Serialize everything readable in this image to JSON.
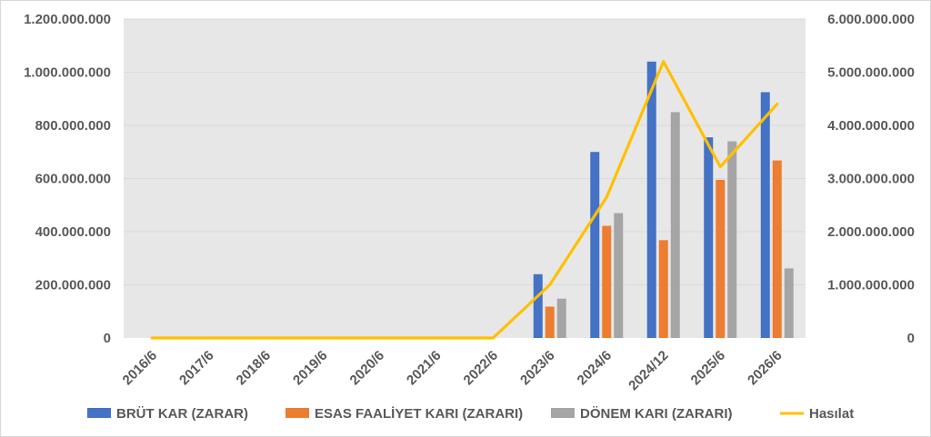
{
  "chart_data": {
    "type": "bar",
    "categories": [
      "2016/6",
      "2017/6",
      "2018/6",
      "2019/6",
      "2020/6",
      "2021/6",
      "2022/6",
      "2023/6",
      "2024/6",
      "2024/12",
      "2025/6",
      "2026/6"
    ],
    "series": [
      {
        "name": "BRÜT KAR (ZARAR)",
        "type": "bar",
        "axis": "left",
        "color": "#4472c4",
        "values": [
          null,
          null,
          null,
          null,
          null,
          null,
          null,
          240000000,
          700000000,
          1040000000,
          755000000,
          925000000
        ]
      },
      {
        "name": "ESAS FAALİYET KARI (ZARARI)",
        "type": "bar",
        "axis": "left",
        "color": "#ed7d31",
        "values": [
          null,
          null,
          null,
          null,
          null,
          null,
          null,
          118000000,
          422000000,
          368000000,
          595000000,
          668000000
        ]
      },
      {
        "name": "DÖNEM KARI (ZARARI)",
        "type": "bar",
        "axis": "left",
        "color": "#a5a5a5",
        "values": [
          null,
          null,
          null,
          null,
          null,
          null,
          null,
          148000000,
          470000000,
          850000000,
          740000000,
          262000000
        ]
      },
      {
        "name": "Hasılat",
        "type": "line",
        "axis": "right",
        "color": "#ffc000",
        "values": [
          0,
          0,
          0,
          0,
          0,
          0,
          0,
          1000000000,
          2650000000,
          5200000000,
          3220000000,
          4400000000
        ]
      }
    ],
    "ylim_left": [
      0,
      1200000000
    ],
    "ylim_right": [
      0,
      6000000000
    ],
    "yticks_left": [
      "0",
      "200.000.000",
      "400.000.000",
      "600.000.000",
      "800.000.000",
      "1.000.000.000",
      "1.200.000.000"
    ],
    "yticks_right": [
      "0",
      "1.000.000.000",
      "2.000.000.000",
      "3.000.000.000",
      "4.000.000.000",
      "5.000.000.000",
      "6.000.000.000"
    ],
    "grid": true,
    "legend_position": "bottom",
    "plot_background": "#e7e7e7"
  }
}
